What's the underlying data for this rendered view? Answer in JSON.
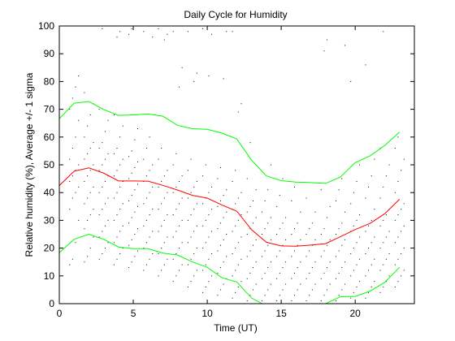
{
  "chart_data": {
    "type": "line",
    "title": "Daily Cycle for Humidity",
    "xlabel": "Time (UT)",
    "ylabel": "Relative humidity (%), Average +/- 1 sigma",
    "xlim": [
      0,
      24
    ],
    "ylim": [
      0,
      100
    ],
    "xticks": [
      0,
      5,
      10,
      15,
      20
    ],
    "yticks": [
      0,
      10,
      20,
      30,
      40,
      50,
      60,
      70,
      80,
      90,
      100
    ],
    "grid": false,
    "series": [
      {
        "role": "average",
        "color": "#ff0000",
        "x": [
          0,
          1,
          2,
          3,
          4,
          5,
          6,
          7,
          8,
          9,
          10,
          11,
          12,
          13,
          14,
          15,
          16,
          17,
          18,
          19,
          20,
          21,
          22,
          23
        ],
        "y": [
          42.5,
          47.7,
          48.9,
          47.0,
          44.2,
          44.2,
          44.1,
          42.6,
          40.9,
          39.0,
          38.0,
          35.5,
          33.3,
          26.6,
          22.1,
          20.8,
          20.7,
          21.1,
          21.6,
          24.1,
          26.7,
          28.9,
          32.4,
          37.6
        ]
      },
      {
        "role": "average plus 1 sigma",
        "color": "#00ff00",
        "x": [
          0,
          1,
          2,
          3,
          4,
          5,
          6,
          7,
          8,
          9,
          10,
          11,
          12,
          13,
          14,
          15,
          16,
          17,
          18,
          19,
          20,
          21,
          22,
          23
        ],
        "y": [
          66.6,
          72.2,
          72.8,
          69.9,
          67.8,
          68.0,
          68.3,
          67.5,
          64.2,
          63.0,
          62.8,
          61.4,
          59.3,
          51.6,
          46.0,
          44.3,
          43.8,
          43.6,
          43.3,
          45.6,
          50.8,
          53.2,
          57.0,
          61.8
        ]
      },
      {
        "role": "average minus 1 sigma",
        "color": "#00ff00",
        "x": [
          0,
          1,
          2,
          3,
          4,
          5,
          6,
          7,
          8,
          9,
          10,
          11,
          12,
          13,
          13.7,
          18,
          19,
          20,
          21,
          22,
          23
        ],
        "y": [
          18.3,
          23.2,
          25.0,
          23.2,
          20.4,
          19.8,
          19.8,
          18.2,
          17.5,
          15.0,
          13.1,
          9.3,
          7.8,
          2.0,
          0,
          0,
          2.5,
          2.6,
          4.5,
          7.7,
          13.1
        ]
      }
    ],
    "scatter": {
      "color": "#000000",
      "x_offsets": [
        -0.3,
        -0.1,
        0.1,
        0.3
      ],
      "columns": [
        {
          "x": 1,
          "y": [
            14,
            16,
            22,
            30,
            34,
            38,
            40,
            42,
            44,
            46,
            48,
            50,
            52,
            56,
            60,
            66,
            70,
            74,
            78,
            82
          ]
        },
        {
          "x": 2,
          "y": [
            15,
            17,
            20,
            24,
            27,
            30,
            32,
            34,
            36,
            38,
            40,
            42,
            44,
            46,
            48,
            50,
            52,
            54,
            56,
            58,
            60,
            64,
            68,
            72,
            76,
            100
          ]
        },
        {
          "x": 3,
          "y": [
            16,
            18,
            20,
            22,
            24,
            26,
            28,
            30,
            32,
            34,
            36,
            38,
            40,
            42,
            44,
            46,
            48,
            50,
            52,
            54,
            56,
            58,
            62,
            66,
            70,
            99
          ]
        },
        {
          "x": 4,
          "y": [
            14,
            16,
            18,
            20,
            22,
            24,
            26,
            28,
            30,
            32,
            34,
            36,
            38,
            40,
            42,
            44,
            46,
            48,
            50,
            52,
            54,
            56,
            60,
            64,
            68,
            96,
            98,
            100
          ]
        },
        {
          "x": 5,
          "y": [
            13,
            15,
            17,
            19,
            21,
            23,
            25,
            27,
            29,
            31,
            33,
            35,
            37,
            39,
            41,
            43,
            45,
            47,
            49,
            51,
            53,
            55,
            59,
            63,
            97,
            99
          ]
        },
        {
          "x": 6,
          "y": [
            12,
            14,
            16,
            18,
            20,
            22,
            24,
            26,
            28,
            30,
            32,
            34,
            36,
            38,
            40,
            42,
            44,
            46,
            48,
            50,
            52,
            56,
            60,
            96,
            98,
            100
          ]
        },
        {
          "x": 7,
          "y": [
            10,
            12,
            14,
            16,
            18,
            20,
            22,
            24,
            26,
            28,
            30,
            32,
            34,
            36,
            38,
            40,
            42,
            44,
            46,
            48,
            52,
            56,
            95,
            97,
            99
          ]
        },
        {
          "x": 8,
          "y": [
            8,
            10,
            12,
            14,
            16,
            18,
            20,
            22,
            24,
            26,
            28,
            30,
            32,
            34,
            36,
            38,
            40,
            42,
            44,
            46,
            50,
            54,
            78,
            85,
            98
          ]
        },
        {
          "x": 9,
          "y": [
            6,
            8,
            10,
            12,
            14,
            16,
            18,
            20,
            22,
            24,
            26,
            28,
            30,
            32,
            34,
            36,
            38,
            40,
            42,
            44,
            48,
            52,
            80,
            83,
            98
          ]
        },
        {
          "x": 10,
          "y": [
            4,
            6,
            8,
            10,
            12,
            14,
            16,
            18,
            20,
            22,
            24,
            26,
            28,
            30,
            32,
            34,
            36,
            38,
            40,
            42,
            46,
            50,
            82,
            97,
            99
          ]
        },
        {
          "x": 11,
          "y": [
            3,
            5,
            7,
            9,
            11,
            13,
            15,
            17,
            19,
            21,
            23,
            25,
            27,
            29,
            31,
            33,
            35,
            37,
            39,
            41,
            45,
            49,
            81,
            98
          ]
        },
        {
          "x": 12,
          "y": [
            2,
            4,
            6,
            8,
            10,
            12,
            14,
            16,
            18,
            20,
            22,
            24,
            26,
            28,
            30,
            32,
            34,
            36,
            38,
            40,
            44,
            48,
            69,
            72,
            98
          ]
        },
        {
          "x": 13,
          "y": [
            1,
            3,
            5,
            7,
            9,
            11,
            13,
            15,
            17,
            19,
            21,
            23,
            25,
            27,
            29,
            31,
            33,
            35,
            37,
            41,
            45,
            58
          ]
        },
        {
          "x": 14,
          "y": [
            1,
            3,
            5,
            7,
            9,
            11,
            13,
            15,
            17,
            19,
            21,
            23,
            25,
            27,
            29,
            31,
            33,
            37,
            41,
            50
          ]
        },
        {
          "x": 15,
          "y": [
            1,
            3,
            5,
            7,
            9,
            11,
            13,
            15,
            17,
            19,
            21,
            23,
            25,
            27,
            29,
            31,
            35,
            39,
            45
          ]
        },
        {
          "x": 16,
          "y": [
            1,
            3,
            5,
            7,
            9,
            11,
            13,
            15,
            17,
            19,
            21,
            23,
            25,
            27,
            29,
            33,
            37,
            42
          ]
        },
        {
          "x": 17,
          "y": [
            1,
            3,
            5,
            7,
            9,
            11,
            13,
            15,
            17,
            19,
            21,
            23,
            25,
            27,
            29,
            33,
            38
          ]
        },
        {
          "x": 18,
          "y": [
            1,
            3,
            5,
            7,
            9,
            11,
            13,
            15,
            17,
            19,
            21,
            23,
            25,
            27,
            31,
            35,
            41,
            91,
            95
          ]
        },
        {
          "x": 19,
          "y": [
            1,
            3,
            5,
            7,
            9,
            11,
            13,
            15,
            17,
            19,
            21,
            23,
            25,
            27,
            29,
            33,
            37,
            41,
            45,
            93
          ]
        },
        {
          "x": 20,
          "y": [
            2,
            4,
            6,
            8,
            10,
            12,
            14,
            16,
            18,
            20,
            22,
            24,
            26,
            28,
            30,
            32,
            36,
            40,
            44,
            50,
            80
          ]
        },
        {
          "x": 21,
          "y": [
            2,
            4,
            6,
            8,
            10,
            12,
            14,
            16,
            18,
            20,
            22,
            24,
            26,
            28,
            30,
            34,
            38,
            42,
            46,
            52,
            86
          ]
        },
        {
          "x": 22,
          "y": [
            4,
            6,
            8,
            10,
            12,
            14,
            16,
            18,
            20,
            22,
            24,
            26,
            28,
            30,
            32,
            34,
            38,
            42,
            46,
            50,
            56,
            98
          ]
        },
        {
          "x": 23,
          "y": [
            6,
            8,
            10,
            12,
            14,
            16,
            18,
            20,
            22,
            24,
            26,
            28,
            30,
            32,
            34,
            36,
            40,
            44,
            48,
            52,
            56,
            60
          ]
        }
      ]
    }
  }
}
